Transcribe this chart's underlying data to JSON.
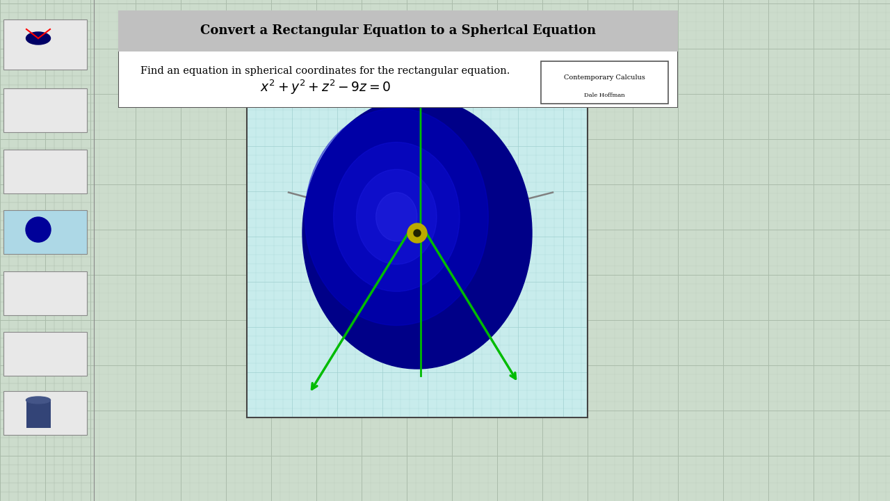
{
  "title": "Convert a Rectangular Equation to a Spherical Equation",
  "subtitle": "Find an equation in spherical coordinates for the rectangular equation.",
  "equation": "$x^2 + y^2 + z^2 - 9z = 0$",
  "watermark_line1": "Contemporary Calculus",
  "watermark_line2": "Dale Hoffman",
  "bg_color": "#ccdccc",
  "grid_color_major": "#aabcaa",
  "grid_color_minor": "#bccbbc",
  "header_bg": "#c0c0c0",
  "content_bg": "#ffffff",
  "plot_bg": "#c8ecec",
  "plot_grid_color": "#a0d0d0",
  "axis_color_green": "#00bb00",
  "axis_color_gray": "#808080",
  "origin_marker_color": "#bbaa00",
  "sidebar_bg": "#ccdccc"
}
